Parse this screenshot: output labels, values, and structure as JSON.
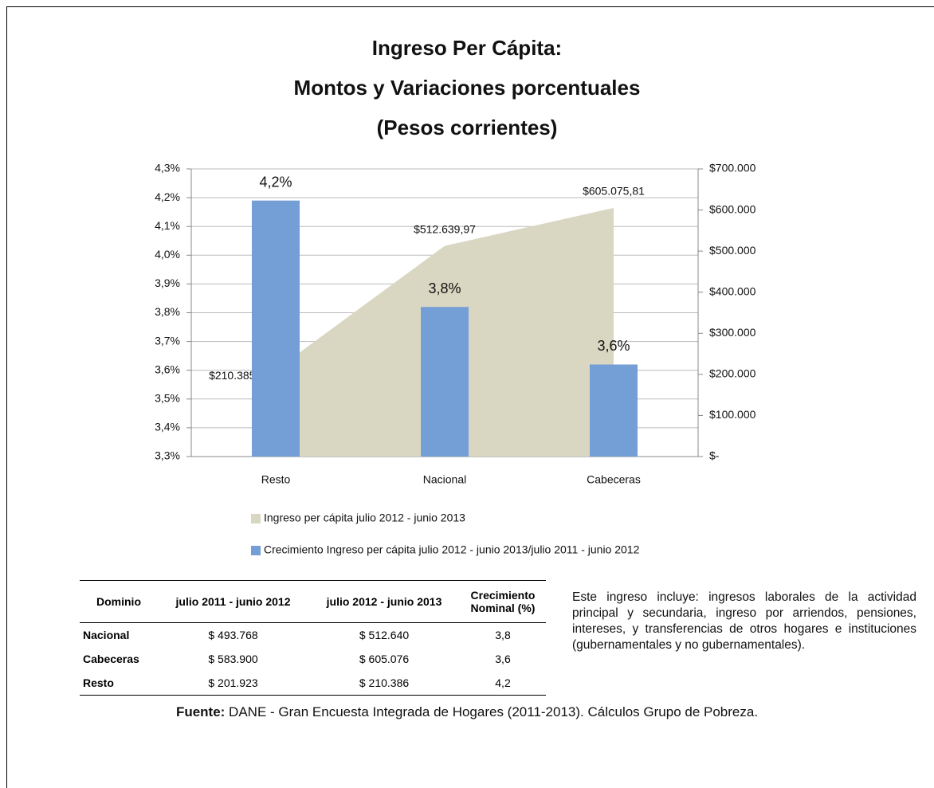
{
  "chart_data": {
    "type": "bar",
    "title": [
      "Ingreso Per Cápita:",
      "Montos y Variaciones porcentuales",
      "(Pesos corrientes)"
    ],
    "categories": [
      "Resto",
      "Nacional",
      "Cabeceras"
    ],
    "series": [
      {
        "name": "Ingreso per cápita julio 2012 - junio 2013",
        "type": "area",
        "axis": "y2",
        "color": "#d9d6c1",
        "values": [
          210385.58,
          512639.97,
          605075.81
        ],
        "value_labels": [
          "$210.385,58",
          "$512.639,97",
          "$605.075,81"
        ]
      },
      {
        "name": "Crecimiento Ingreso per cápita julio 2012 - junio 2013/julio 2011 - junio 2012",
        "type": "bar",
        "color": "#739fd6",
        "values": [
          4.19,
          3.82,
          3.62
        ],
        "value_labels": [
          "4,2%",
          "3,8%",
          "3,6%"
        ]
      }
    ],
    "ylim": [
      3.3,
      4.3
    ],
    "yticks": [
      {
        "value": 3.3,
        "label": "3,3%"
      },
      {
        "value": 3.4,
        "label": "3,4%"
      },
      {
        "value": 3.5,
        "label": "3,5%"
      },
      {
        "value": 3.6,
        "label": "3,6%"
      },
      {
        "value": 3.7,
        "label": "3,7%"
      },
      {
        "value": 3.8,
        "label": "3,8%"
      },
      {
        "value": 3.9,
        "label": "3,9%"
      },
      {
        "value": 4.0,
        "label": "4,0%"
      },
      {
        "value": 4.1,
        "label": "4,1%"
      },
      {
        "value": 4.2,
        "label": "4,2%"
      },
      {
        "value": 4.3,
        "label": "4,3%"
      }
    ],
    "y2lim": [
      0,
      700000
    ],
    "y2ticks": [
      {
        "value": 0,
        "label": "$-"
      },
      {
        "value": 100000,
        "label": "$100.000"
      },
      {
        "value": 200000,
        "label": "$200.000"
      },
      {
        "value": 300000,
        "label": "$300.000"
      },
      {
        "value": 400000,
        "label": "$400.000"
      },
      {
        "value": 500000,
        "label": "$500.000"
      },
      {
        "value": 600000,
        "label": "$600.000"
      },
      {
        "value": 700000,
        "label": "$700.000"
      }
    ],
    "grid": true
  },
  "table": {
    "header": [
      "Dominio",
      "julio 2011 - junio 2012",
      "julio 2012 - junio 2013",
      "Crecimiento Nominal (%)"
    ],
    "rows": [
      [
        "Nacional",
        "$ 493.768",
        "$ 512.640",
        "3,8"
      ],
      [
        "Cabeceras",
        "$ 583.900",
        "$ 605.076",
        "3,6"
      ],
      [
        "Resto",
        "$ 201.923",
        "$ 210.386",
        "4,2"
      ]
    ]
  },
  "note": "Este ingreso incluye: ingresos laborales de la actividad principal y secundaria, ingreso por arriendos, pensiones, intereses, y transferencias de otros hogares e instituciones (gubernamentales y no gubernamentales).",
  "source": {
    "label": "Fuente:",
    "text": " DANE - Gran Encuesta Integrada de Hogares (2011-2013). Cálculos Grupo de Pobreza."
  }
}
